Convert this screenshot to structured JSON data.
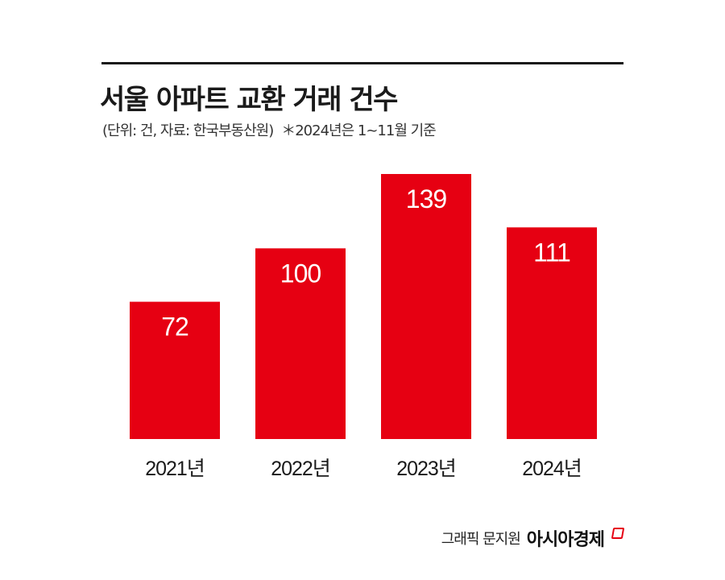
{
  "title": "서울 아파트 교환 거래 건수",
  "subtitle": "(단위: 건, 자료: 한국부동산원)",
  "note": "＊2024년은 1~11월 기준",
  "credit": "그래픽 문지원",
  "brand": "아시아경제",
  "colors": {
    "bar": "#e60012",
    "text": "#1a1a1a",
    "rule": "#1a1a1a"
  },
  "chart_data": {
    "type": "bar",
    "categories": [
      "2021년",
      "2022년",
      "2023년",
      "2024년"
    ],
    "values": [
      72,
      100,
      139,
      111
    ],
    "data_labels": [
      "72",
      "100",
      "139",
      "111"
    ],
    "title": "서울 아파트 교환 거래 건수",
    "xlabel": "",
    "ylabel": "",
    "ylim": [
      0,
      139
    ],
    "grid": false,
    "legend": "none"
  }
}
